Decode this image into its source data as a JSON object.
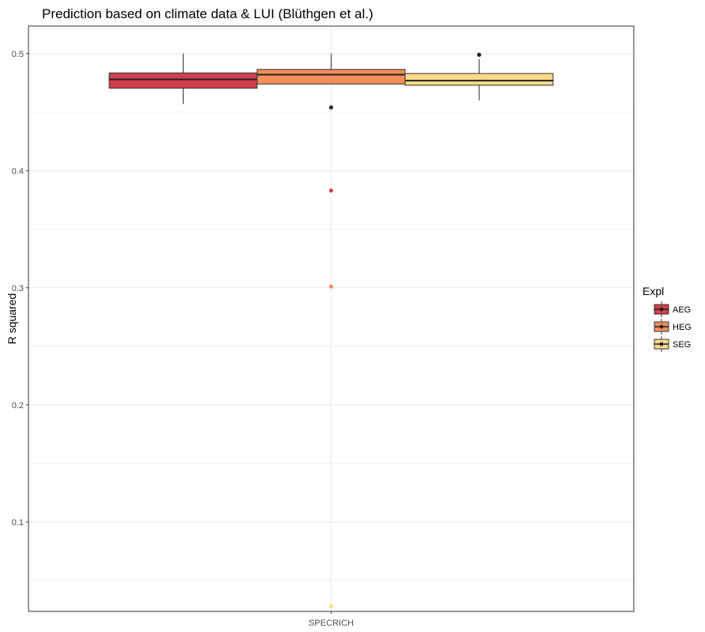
{
  "chart_data": {
    "type": "box",
    "title": "Prediction based on climate data & LUI (Blüthgen et al.)",
    "xlabel": "",
    "ylabel": "R squared",
    "categories": [
      "SPECRICH"
    ],
    "y_ticks": [
      0.1,
      0.2,
      0.3,
      0.4,
      0.5
    ],
    "ylim": [
      0.0235,
      0.5235
    ],
    "grid": true,
    "legend": {
      "title": "Expl",
      "placement": "right",
      "entries": [
        "AEG",
        "HEG",
        "SEG"
      ]
    },
    "series": [
      {
        "name": "AEG",
        "color": "#D13F4E",
        "whisker_low": 0.457,
        "q1": 0.4705,
        "median": 0.478,
        "q3": 0.4835,
        "whisker_high": 0.5,
        "outliers": [
          0.383
        ]
      },
      {
        "name": "HEG",
        "color": "#F38D5A",
        "whisker_low": 0.474,
        "q1": 0.474,
        "median": 0.482,
        "q3": 0.4865,
        "whisker_high": 0.5,
        "outliers": [
          0.454,
          0.301
        ]
      },
      {
        "name": "SEG",
        "color": "#FDDA8A",
        "whisker_low": 0.46,
        "q1": 0.473,
        "median": 0.477,
        "q3": 0.483,
        "whisker_high": 0.495,
        "outliers": [
          0.499,
          0.028
        ]
      }
    ]
  }
}
